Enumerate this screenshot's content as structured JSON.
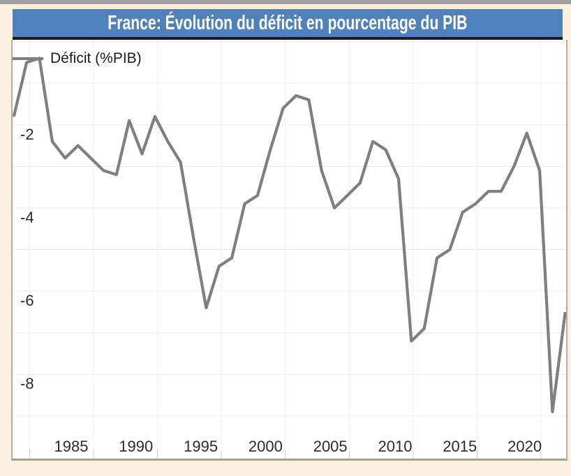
{
  "window": {
    "top_strip_color": "#9f9f9f",
    "background_color": "#faf0dd"
  },
  "title_bar": {
    "text": "France: Évolution du déficit en pourcentage du PIB",
    "background_color": "#4f81bd",
    "underline_color": "#1b1b1b",
    "text_color": "#ffffff"
  },
  "legend": {
    "label": "Déficit (%PIB)",
    "line_color": "#7f7f7f"
  },
  "axes": {
    "y_tick_labels": [
      "-2",
      "-4",
      "-6",
      "-8"
    ],
    "x_tick_labels": [
      "1985",
      "1990",
      "1995",
      "2000",
      "2005",
      "2010",
      "2015",
      "2020"
    ]
  },
  "chart_data": {
    "type": "line",
    "title": "France: Évolution du déficit en pourcentage du PIB",
    "xlabel": "",
    "ylabel": "Déficit (%PIB)",
    "ylim": [
      -10,
      0
    ],
    "xlim": [
      1978,
      2021
    ],
    "grid": true,
    "legend_position": "top-left",
    "line_color": "#7f7f7f",
    "x_tick_labels": [
      "1985",
      "1990",
      "1995",
      "2000",
      "2005",
      "2010",
      "2015",
      "2020"
    ],
    "y_tick_labels": [
      "-2",
      "-4",
      "-6",
      "-8"
    ],
    "series": [
      {
        "name": "Déficit (%PIB)",
        "color": "#7f7f7f",
        "x": [
          1978,
          1979,
          1980,
          1981,
          1982,
          1983,
          1984,
          1985,
          1986,
          1987,
          1988,
          1989,
          1990,
          1991,
          1992,
          1993,
          1994,
          1995,
          1996,
          1997,
          1998,
          1999,
          2000,
          2001,
          2002,
          2003,
          2004,
          2005,
          2006,
          2007,
          2008,
          2009,
          2010,
          2011,
          2012,
          2013,
          2014,
          2015,
          2016,
          2017,
          2018,
          2019,
          2020,
          2021
        ],
        "values": [
          -1.8,
          -0.5,
          -0.4,
          -2.4,
          -2.8,
          -2.5,
          -2.8,
          -3.1,
          -3.2,
          -1.9,
          -2.7,
          -1.8,
          -2.4,
          -2.9,
          -4.7,
          -6.4,
          -5.4,
          -5.2,
          -3.9,
          -3.7,
          -2.6,
          -1.6,
          -1.3,
          -1.4,
          -3.1,
          -4.0,
          -3.7,
          -3.4,
          -2.4,
          -2.6,
          -3.3,
          -7.2,
          -6.9,
          -5.2,
          -5.0,
          -4.1,
          -3.9,
          -3.6,
          -3.6,
          -3.0,
          -2.2,
          -3.1,
          -8.9,
          -6.5
        ]
      }
    ]
  }
}
